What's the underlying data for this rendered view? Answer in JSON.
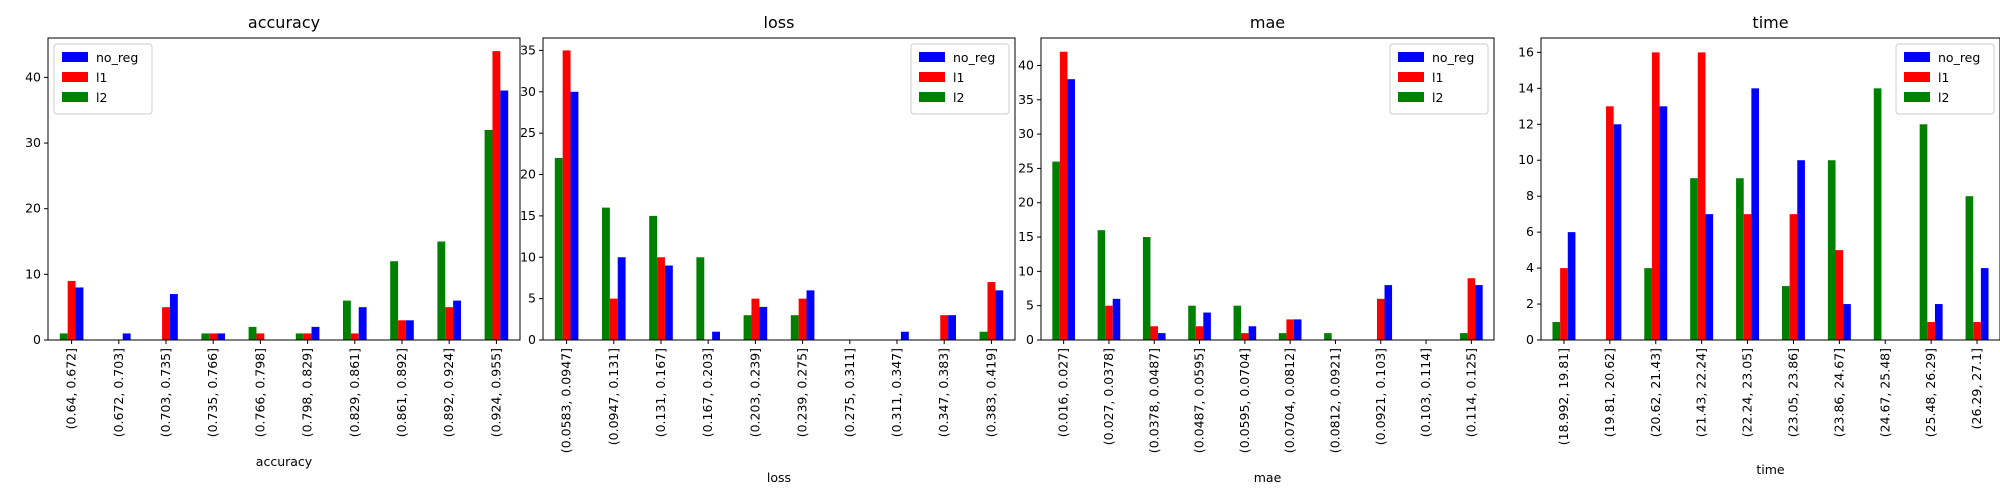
{
  "colors": {
    "no_reg": "#0000ff",
    "l1": "#ff0000",
    "l2": "#008000"
  },
  "chart_data": [
    {
      "type": "bar",
      "title": "accuracy",
      "xlabel": "accuracy",
      "ylabel": "",
      "ylim": [
        0,
        46
      ],
      "yticks": [
        0,
        10,
        20,
        30,
        40
      ],
      "legend": "top-left",
      "categories": [
        "(0.64, 0.672]",
        "(0.672, 0.703]",
        "(0.703, 0.735]",
        "(0.735, 0.766]",
        "(0.766, 0.798]",
        "(0.798, 0.829]",
        "(0.829, 0.861]",
        "(0.861, 0.892]",
        "(0.892, 0.924]",
        "(0.924, 0.955]"
      ],
      "series": [
        {
          "name": "no_reg",
          "values": [
            8,
            1,
            7,
            1,
            0,
            2,
            5,
            3,
            6,
            38
          ]
        },
        {
          "name": "l1",
          "values": [
            9,
            0,
            5,
            1,
            1,
            1,
            1,
            3,
            5,
            44
          ]
        },
        {
          "name": "l2",
          "values": [
            1,
            0,
            0,
            1,
            2,
            1,
            6,
            12,
            15,
            32
          ]
        }
      ]
    },
    {
      "type": "bar",
      "title": "loss",
      "xlabel": "loss",
      "ylabel": "",
      "ylim": [
        0,
        36.5
      ],
      "yticks": [
        0,
        5,
        10,
        15,
        20,
        25,
        30,
        35
      ],
      "legend": "top-right",
      "categories": [
        "(0.0583, 0.0947]",
        "(0.0947, 0.131]",
        "(0.131, 0.167]",
        "(0.167, 0.203]",
        "(0.203, 0.239]",
        "(0.239, 0.275]",
        "(0.275, 0.311]",
        "(0.311, 0.347]",
        "(0.347, 0.383]",
        "(0.383, 0.419]"
      ],
      "series": [
        {
          "name": "no_reg",
          "values": [
            30,
            10,
            9,
            1,
            4,
            6,
            0,
            1,
            3,
            6
          ]
        },
        {
          "name": "l1",
          "values": [
            35,
            5,
            10,
            0,
            5,
            5,
            0,
            0,
            3,
            7
          ]
        },
        {
          "name": "l2",
          "values": [
            22,
            16,
            15,
            10,
            3,
            3,
            0,
            0,
            0,
            1
          ]
        }
      ]
    },
    {
      "type": "bar",
      "title": "mae",
      "xlabel": "mae",
      "ylabel": "",
      "ylim": [
        0,
        44
      ],
      "yticks": [
        0,
        5,
        10,
        15,
        20,
        25,
        30,
        35,
        40
      ],
      "legend": "top-right",
      "categories": [
        "(0.016, 0.027]",
        "(0.027, 0.0378]",
        "(0.0378, 0.0487]",
        "(0.0487, 0.0595]",
        "(0.0595, 0.0704]",
        "(0.0704, 0.0812]",
        "(0.0812, 0.0921]",
        "(0.0921, 0.103]",
        "(0.103, 0.114]",
        "(0.114, 0.125]"
      ],
      "series": [
        {
          "name": "no_reg",
          "values": [
            38,
            6,
            1,
            4,
            2,
            3,
            0,
            8,
            0,
            8
          ]
        },
        {
          "name": "l1",
          "values": [
            42,
            5,
            2,
            2,
            1,
            3,
            0,
            6,
            0,
            9
          ]
        },
        {
          "name": "l2",
          "values": [
            26,
            16,
            15,
            5,
            5,
            1,
            1,
            0,
            0,
            1
          ]
        }
      ]
    },
    {
      "type": "bar",
      "title": "time",
      "xlabel": "time",
      "ylabel": "",
      "ylim": [
        0,
        16.8
      ],
      "yticks": [
        0,
        2,
        4,
        6,
        8,
        10,
        12,
        14,
        16
      ],
      "legend": "top-right",
      "categories": [
        "(18.992, 19.81]",
        "(19.81, 20.62]",
        "(20.62, 21.43]",
        "(21.43, 22.24]",
        "(22.24, 23.05]",
        "(23.05, 23.86]",
        "(23.86, 24.67]",
        "(24.67, 25.48]",
        "(25.48, 26.29]",
        "(26.29, 27.1]"
      ],
      "series": [
        {
          "name": "no_reg",
          "values": [
            6,
            12,
            13,
            7,
            14,
            10,
            2,
            0,
            2,
            4
          ]
        },
        {
          "name": "l1",
          "values": [
            4,
            13,
            16,
            16,
            7,
            7,
            5,
            0,
            1,
            1
          ]
        },
        {
          "name": "l2",
          "values": [
            1,
            0,
            4,
            9,
            9,
            3,
            10,
            14,
            12,
            8
          ]
        }
      ]
    }
  ]
}
